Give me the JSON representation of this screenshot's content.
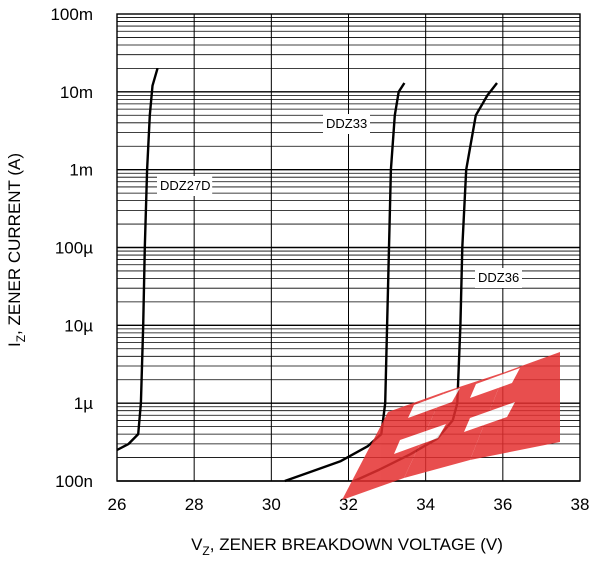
{
  "chart_data": {
    "type": "line",
    "title": "",
    "xlabel": {
      "main": "V",
      "sub": "Z",
      "rest": ", ZENER BREAKDOWN VOLTAGE (V)"
    },
    "ylabel": {
      "main": "I",
      "sub": "Z",
      "rest": ", ZENER CURRENT (A)"
    },
    "x_scale": "linear",
    "y_scale": "log",
    "xlim": [
      26,
      38
    ],
    "ylim": [
      1e-07,
      0.1
    ],
    "x_ticks": [
      26,
      28,
      30,
      32,
      34,
      36,
      38
    ],
    "x_tick_labels": [
      "26",
      "28",
      "30",
      "32",
      "34",
      "36",
      "38"
    ],
    "y_ticks": [
      1e-07,
      1e-06,
      1e-05,
      0.0001,
      0.001,
      0.01,
      0.1
    ],
    "y_tick_labels": [
      "100n",
      "1µ",
      "10µ",
      "100µ",
      "1m",
      "10m",
      "100m"
    ],
    "grid": true,
    "series": [
      {
        "name": "DDZ27D",
        "points": [
          [
            26.0,
            2.5e-07
          ],
          [
            26.3,
            3e-07
          ],
          [
            26.55,
            4e-07
          ],
          [
            26.62,
            1e-06
          ],
          [
            26.68,
            1e-05
          ],
          [
            26.72,
            0.0001
          ],
          [
            26.78,
            0.001
          ],
          [
            26.85,
            0.005
          ],
          [
            26.92,
            0.012
          ],
          [
            27.05,
            0.02
          ]
        ]
      },
      {
        "name": "DDZ33",
        "points": [
          [
            30.35,
            1e-07
          ],
          [
            31.0,
            1.3e-07
          ],
          [
            31.8,
            1.8e-07
          ],
          [
            32.5,
            2.8e-07
          ],
          [
            32.85,
            4e-07
          ],
          [
            32.95,
            1e-06
          ],
          [
            33.0,
            1e-05
          ],
          [
            33.05,
            0.0001
          ],
          [
            33.1,
            0.001
          ],
          [
            33.2,
            0.005
          ],
          [
            33.3,
            0.01
          ],
          [
            33.45,
            0.013
          ]
        ]
      },
      {
        "name": "DDZ36",
        "points": [
          [
            32.15,
            1e-07
          ],
          [
            32.8,
            1.4e-07
          ],
          [
            33.6,
            2.2e-07
          ],
          [
            34.3,
            3.5e-07
          ],
          [
            34.7,
            6e-07
          ],
          [
            34.82,
            1e-06
          ],
          [
            34.9,
            1e-05
          ],
          [
            34.95,
            0.0001
          ],
          [
            35.05,
            0.001
          ],
          [
            35.3,
            0.005
          ],
          [
            35.6,
            0.009
          ],
          [
            35.85,
            0.013
          ]
        ]
      }
    ],
    "annotations": [
      "DDZ27D",
      "DDZ33",
      "DDZ36"
    ]
  }
}
